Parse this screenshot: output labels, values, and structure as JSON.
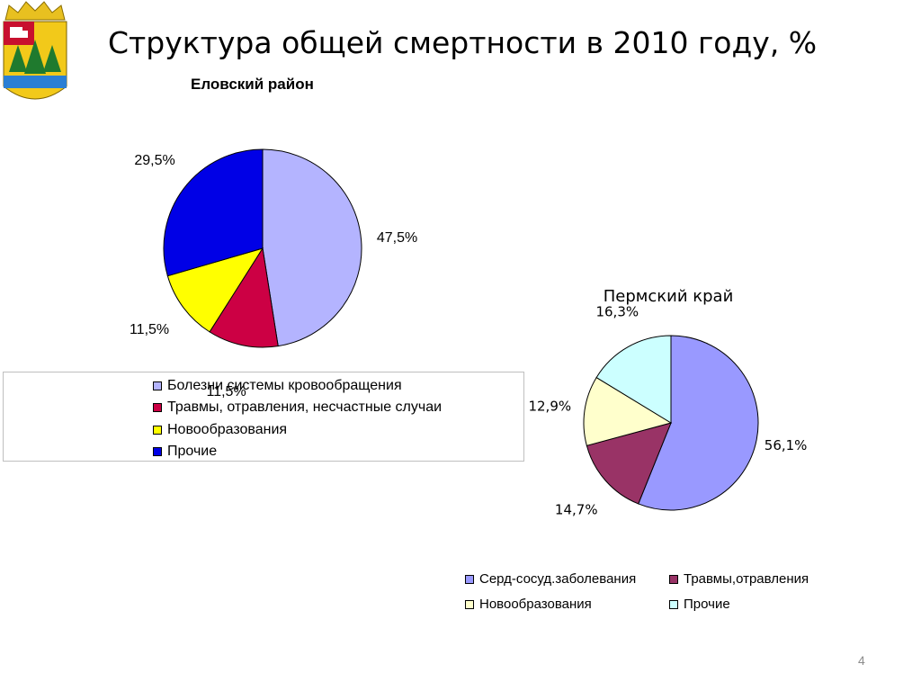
{
  "title": "Структура общей смертности в 2010 году, %",
  "page_number": "4",
  "colors": {
    "cardio1": "#b4b4ff",
    "injury1": "#cc0044",
    "neo1": "#ffff00",
    "other1": "#0000e6",
    "cardio2": "#9999ff",
    "injury2": "#993366",
    "neo2": "#ffffcc",
    "other2": "#ccffff"
  },
  "chart_data": [
    {
      "type": "pie",
      "title": "Еловский район",
      "categories": [
        "Болезни системы кровообращения",
        "Травмы, отравления, несчастные случаи",
        "Новообразования",
        "Прочие"
      ],
      "values": [
        47.5,
        11.5,
        11.5,
        29.5
      ],
      "data_labels": [
        "47,5%",
        "11,5%",
        "11,5%",
        "29,5%"
      ],
      "legend_position": "bottom"
    },
    {
      "type": "pie",
      "title": "Пермский край",
      "categories": [
        "Серд-сосуд.заболевания",
        "Травмы,отравления",
        "Новообразования",
        "Прочие"
      ],
      "values": [
        56.1,
        14.7,
        12.9,
        16.3
      ],
      "data_labels": [
        "56,1%",
        "14,7%",
        "12,9%",
        "16,3%"
      ],
      "legend_position": "bottom"
    }
  ]
}
